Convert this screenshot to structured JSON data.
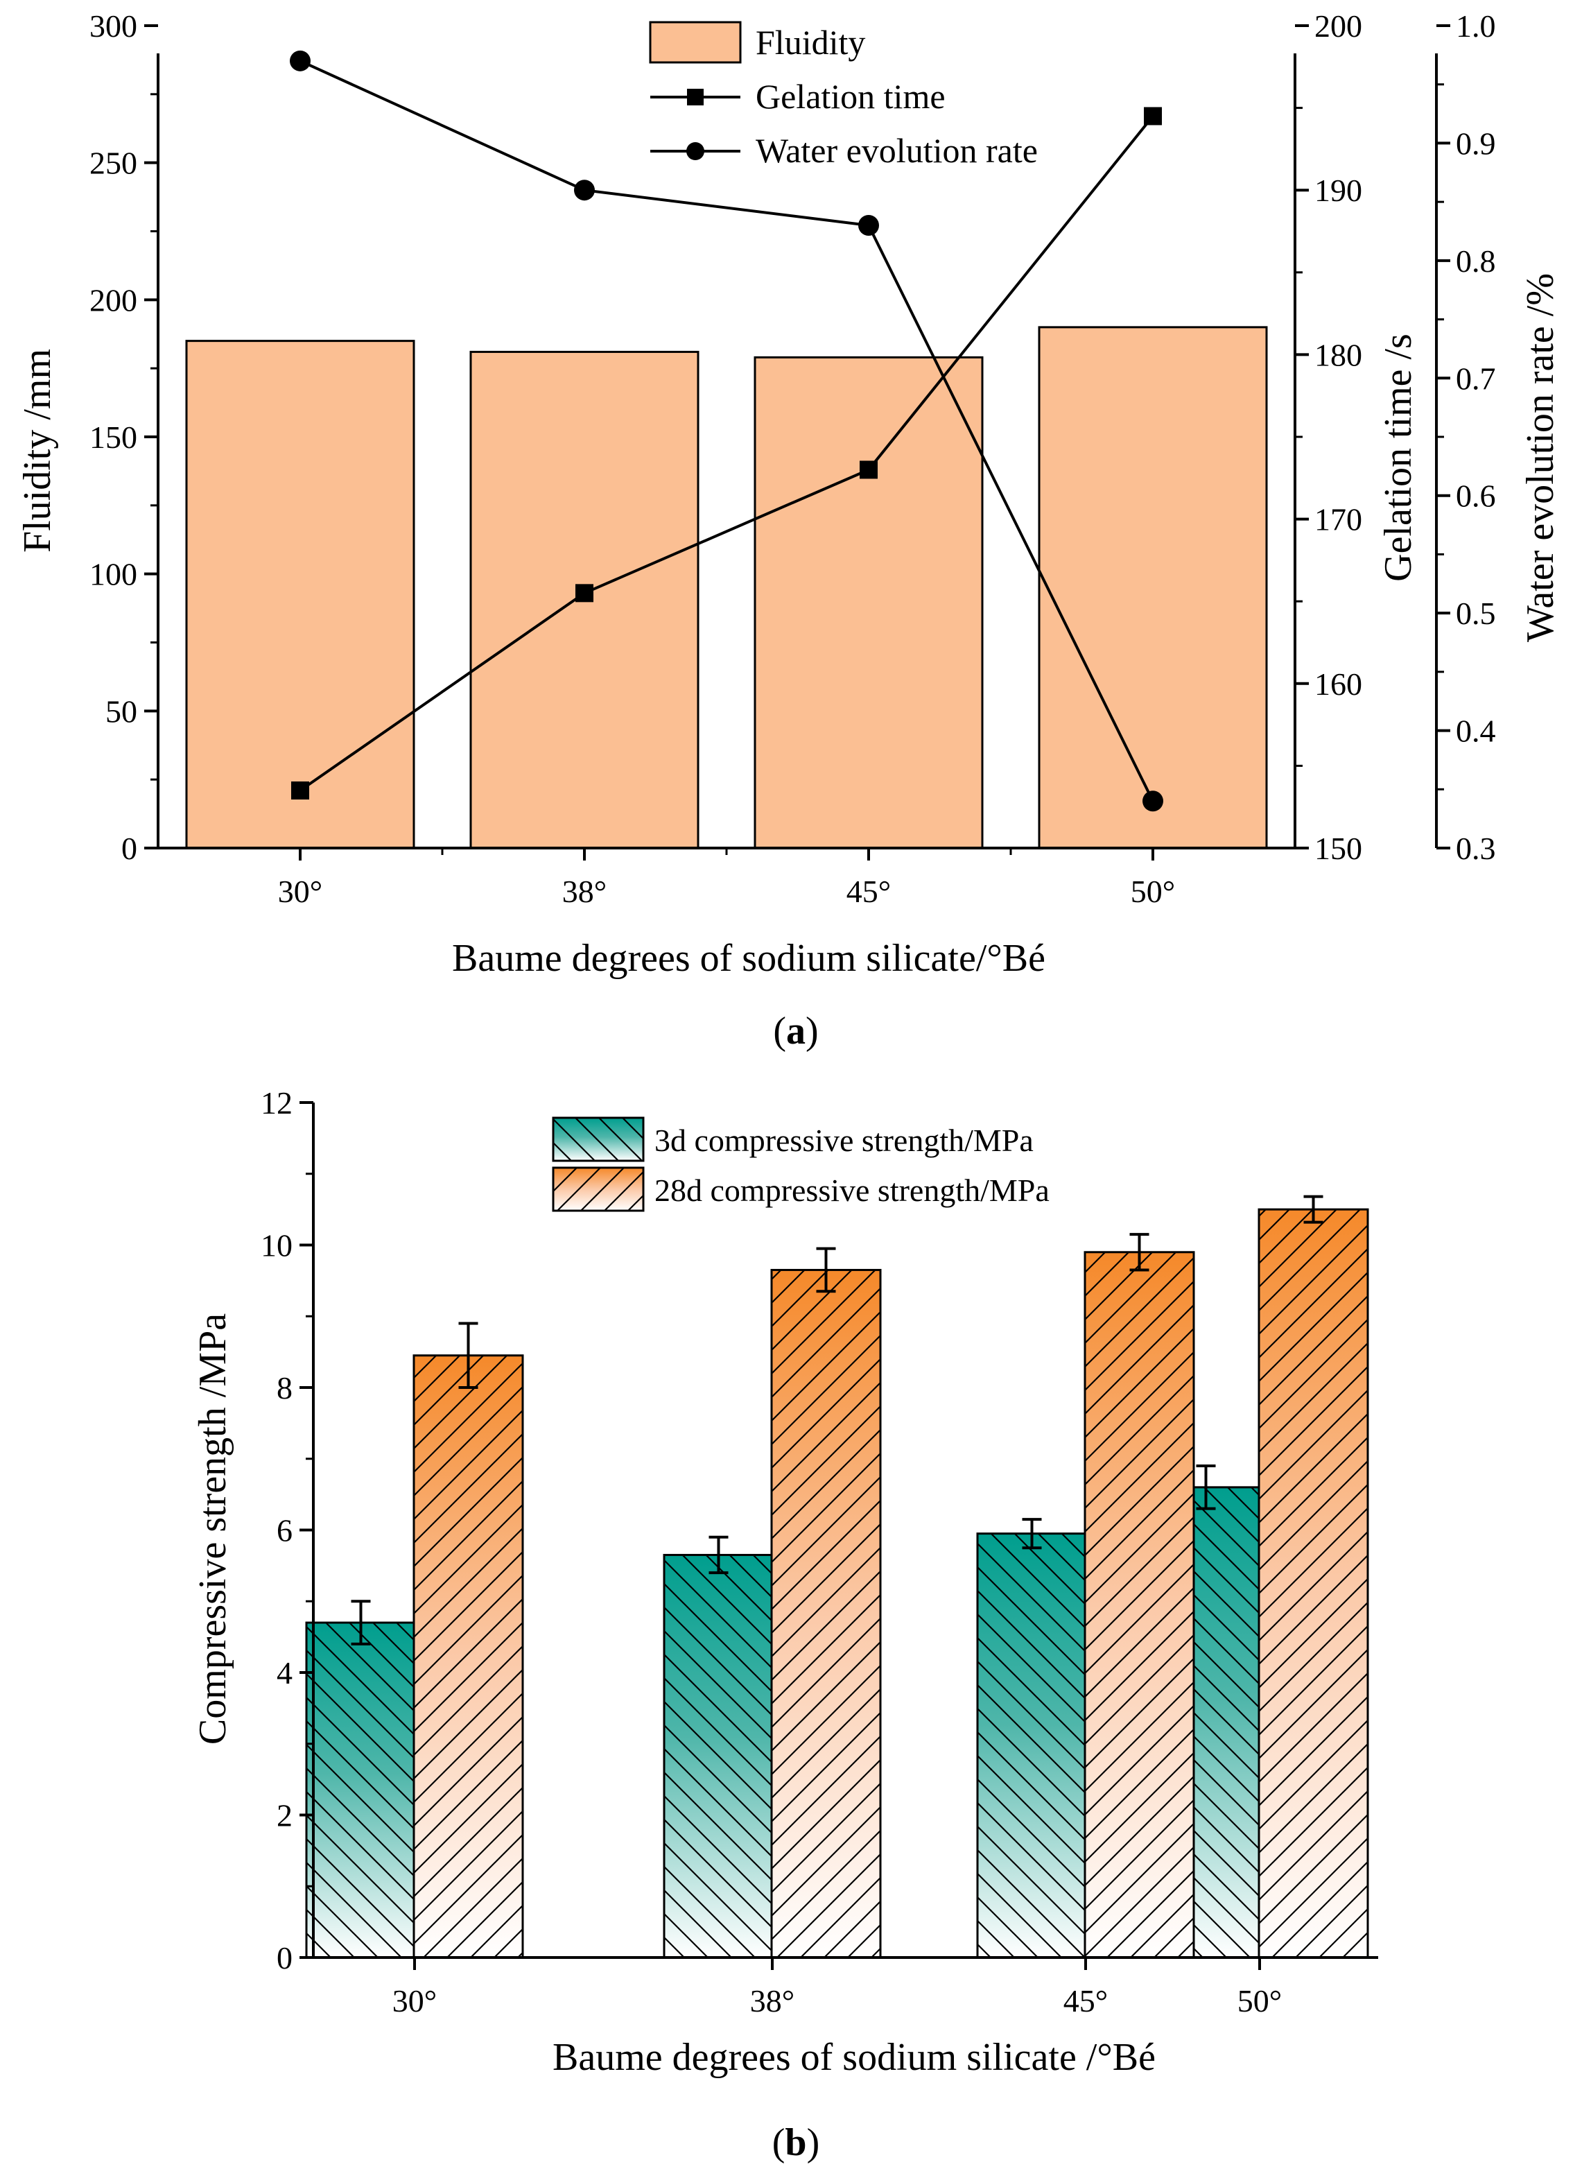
{
  "chart_data": [
    {
      "panel": "(a)",
      "panel_letter": "a",
      "type": "bar",
      "categories": [
        "30°",
        "38°",
        "45°",
        "50°"
      ],
      "xlabel": "Baume degrees of sodium silicate/°Bé",
      "series": [
        {
          "name": "Fluidity",
          "kind": "bar",
          "axis": "left",
          "values": [
            185,
            181,
            179,
            190
          ],
          "color": "#fbbf93"
        },
        {
          "name": "Gelation time",
          "kind": "line",
          "marker": "square",
          "axis": "right1",
          "values": [
            153.5,
            165.5,
            173.0,
            194.5
          ],
          "color": "#000000"
        },
        {
          "name": "Water evolution rate",
          "kind": "line",
          "marker": "circle",
          "axis": "right2",
          "values": [
            0.97,
            0.86,
            0.83,
            0.34
          ],
          "color": "#000000"
        }
      ],
      "axes": {
        "left": {
          "label": "Fluidity /mm",
          "lim": [
            0,
            300
          ],
          "ticks": [
            "0",
            "50",
            "100",
            "150",
            "200",
            "250",
            "300"
          ]
        },
        "right1": {
          "label": "Gelation time /s",
          "lim": [
            150,
            200
          ],
          "ticks": [
            "150",
            "160",
            "170",
            "180",
            "190",
            "200"
          ]
        },
        "right2": {
          "label": "Water evolution rate /%",
          "lim": [
            0.3,
            1.0
          ],
          "ticks": [
            "0.3",
            "0.4",
            "0.5",
            "0.6",
            "0.7",
            "0.8",
            "0.9",
            "1.0"
          ]
        }
      },
      "legend_position": "top-center"
    },
    {
      "panel": "(b)",
      "panel_letter": "b",
      "type": "bar",
      "categories": [
        "30°",
        "38°",
        "45°",
        "50°"
      ],
      "xlabel": "Baume degrees of sodium silicate /°Bé",
      "ylabel": "Compressive strength /MPa",
      "ylim": [
        0,
        12
      ],
      "yticks": [
        "0",
        "2",
        "4",
        "6",
        "8",
        "10",
        "12"
      ],
      "series": [
        {
          "name": "3d compressive strength/MPa",
          "values": [
            4.7,
            5.65,
            5.95,
            6.6
          ],
          "errors": [
            0.3,
            0.25,
            0.2,
            0.3
          ],
          "color": "#009e8e"
        },
        {
          "name": "28d compressive strength/MPa",
          "values": [
            8.45,
            9.65,
            9.9,
            10.5
          ],
          "errors": [
            0.45,
            0.3,
            0.25,
            0.18
          ],
          "color": "#f5892a"
        }
      ],
      "legend_position": "top-center"
    }
  ]
}
